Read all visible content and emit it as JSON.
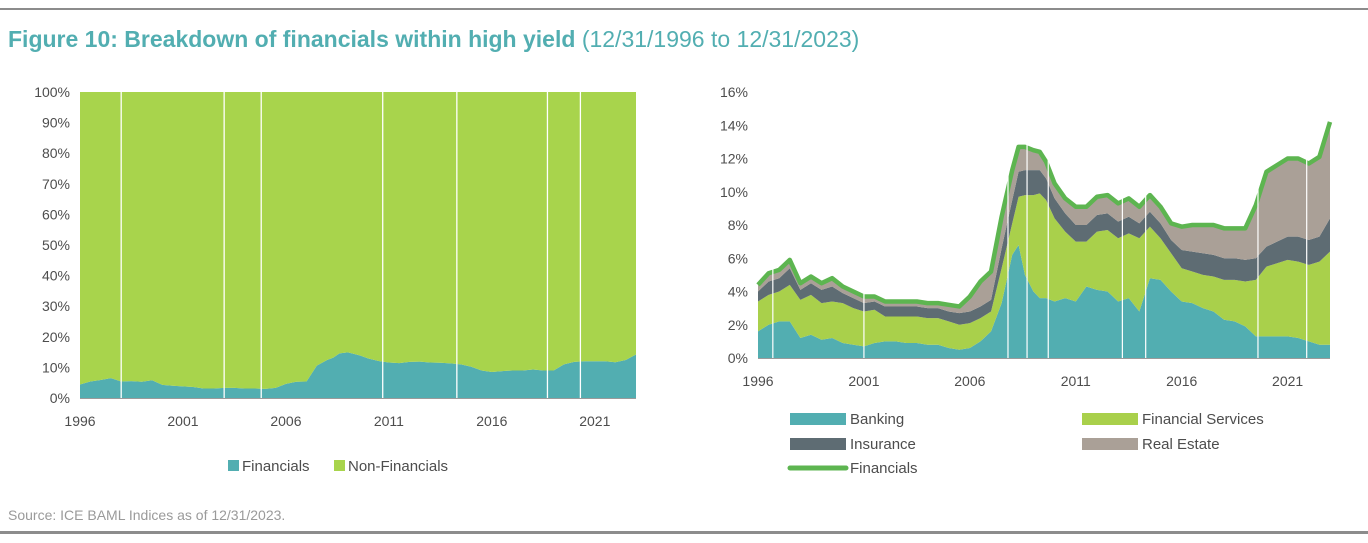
{
  "title": {
    "main": "Figure 10: Breakdown of financials within high yield",
    "range": "(12/31/1996 to 12/31/2023)"
  },
  "colors": {
    "title": "#52aeb1",
    "banking": "#52aeb1",
    "financial_services": "#a9d04b",
    "insurance": "#5e6c73",
    "real_estate": "#aaa097",
    "financials_line": "#5db550",
    "financials_area": "#52aeb1",
    "non_financials_area": "#a8d44c"
  },
  "source": "Source: ICE BAML Indices as of 12/31/2023.",
  "chart_data": [
    {
      "type": "area",
      "stacked": true,
      "normalized": true,
      "xlim": [
        1996,
        2023
      ],
      "ylim": [
        0,
        100
      ],
      "y_tick_labels": [
        "0%",
        "10%",
        "20%",
        "30%",
        "40%",
        "50%",
        "60%",
        "70%",
        "80%",
        "90%",
        "100%"
      ],
      "x_tick_labels": [
        "1996",
        "2001",
        "2006",
        "2011",
        "2016",
        "2021"
      ],
      "legend_position": "bottom",
      "x": [
        1996.0,
        1996.5,
        1997.0,
        1997.5,
        1998.0,
        1998.5,
        1999.0,
        1999.5,
        2000.0,
        2000.5,
        2001.0,
        2001.5,
        2002.0,
        2002.5,
        2003.0,
        2003.5,
        2004.0,
        2004.5,
        2005.0,
        2005.5,
        2006.0,
        2006.5,
        2007.0,
        2007.5,
        2008.0,
        2008.3,
        2008.6,
        2009.0,
        2009.3,
        2009.6,
        2010.0,
        2010.5,
        2011.0,
        2011.5,
        2012.0,
        2012.5,
        2013.0,
        2013.5,
        2014.0,
        2014.5,
        2015.0,
        2015.5,
        2016.0,
        2016.5,
        2017.0,
        2017.5,
        2018.0,
        2018.5,
        2019.0,
        2019.5,
        2020.0,
        2020.5,
        2021.0,
        2021.5,
        2022.0,
        2022.5,
        2023.0
      ],
      "series": [
        {
          "name": "Financials",
          "values": [
            4.4,
            5.4,
            5.9,
            6.5,
            5.4,
            5.5,
            5.3,
            5.8,
            4.3,
            4.0,
            3.8,
            3.6,
            3.1,
            3.1,
            3.3,
            3.3,
            3.1,
            3.1,
            3.0,
            3.3,
            4.6,
            5.3,
            5.4,
            10.6,
            12.4,
            13.2,
            14.6,
            14.9,
            14.4,
            13.9,
            12.9,
            12.1,
            11.6,
            11.4,
            11.8,
            11.9,
            11.6,
            11.5,
            11.3,
            11.0,
            10.2,
            9.0,
            8.5,
            8.8,
            9.0,
            9.0,
            9.3,
            9.0,
            9.0,
            11.0,
            11.8,
            12.0,
            12.0,
            12.0,
            11.7,
            12.4,
            14.2
          ]
        },
        {
          "name": "Non-Financials",
          "values": [
            95.6,
            94.6,
            94.1,
            93.5,
            94.6,
            94.5,
            94.7,
            94.2,
            95.7,
            96.0,
            96.2,
            96.4,
            96.9,
            96.9,
            96.7,
            96.7,
            96.9,
            96.9,
            97.0,
            96.7,
            95.4,
            94.7,
            94.6,
            89.4,
            87.6,
            86.8,
            85.4,
            85.1,
            85.6,
            86.1,
            87.1,
            87.9,
            88.4,
            88.6,
            88.2,
            88.1,
            88.4,
            88.5,
            88.7,
            89.0,
            89.8,
            91.0,
            91.5,
            91.2,
            91.0,
            91.0,
            90.7,
            91.0,
            91.0,
            89.0,
            88.2,
            88.0,
            88.0,
            88.0,
            88.3,
            87.6,
            85.8
          ]
        }
      ]
    },
    {
      "type": "area",
      "stacked": true,
      "xlim": [
        1996,
        2023
      ],
      "ylim": [
        0,
        16
      ],
      "y_tick_labels": [
        "0%",
        "2%",
        "4%",
        "6%",
        "8%",
        "10%",
        "12%",
        "14%",
        "16%"
      ],
      "x_tick_labels": [
        "1996",
        "2001",
        "2006",
        "2011",
        "2016",
        "2021"
      ],
      "legend_position": "bottom",
      "x": [
        1996.0,
        1996.5,
        1997.0,
        1997.5,
        1998.0,
        1998.5,
        1999.0,
        1999.5,
        2000.0,
        2000.5,
        2001.0,
        2001.5,
        2002.0,
        2002.5,
        2003.0,
        2003.5,
        2004.0,
        2004.5,
        2005.0,
        2005.5,
        2006.0,
        2006.5,
        2007.0,
        2007.5,
        2008.0,
        2008.3,
        2008.6,
        2009.0,
        2009.3,
        2009.6,
        2010.0,
        2010.5,
        2011.0,
        2011.5,
        2012.0,
        2012.5,
        2013.0,
        2013.5,
        2014.0,
        2014.5,
        2015.0,
        2015.5,
        2016.0,
        2016.5,
        2017.0,
        2017.5,
        2018.0,
        2018.5,
        2019.0,
        2019.5,
        2020.0,
        2020.5,
        2021.0,
        2021.5,
        2022.0,
        2022.5,
        2023.0
      ],
      "series": [
        {
          "name": "Banking",
          "values": [
            1.6,
            2.0,
            2.2,
            2.2,
            1.2,
            1.4,
            1.1,
            1.2,
            0.9,
            0.8,
            0.7,
            0.9,
            1.0,
            1.0,
            0.9,
            0.9,
            0.8,
            0.8,
            0.6,
            0.5,
            0.6,
            1.0,
            1.6,
            3.3,
            6.2,
            6.8,
            5.0,
            4.0,
            3.6,
            3.6,
            3.4,
            3.6,
            3.4,
            4.3,
            4.1,
            4.0,
            3.4,
            3.6,
            2.8,
            4.8,
            4.7,
            4.0,
            3.4,
            3.3,
            3.0,
            2.8,
            2.3,
            2.2,
            1.9,
            1.3,
            1.3,
            1.3,
            1.3,
            1.2,
            1.0,
            0.8,
            0.8
          ]
        },
        {
          "name": "Financial Services",
          "values": [
            1.8,
            1.8,
            1.8,
            2.2,
            2.3,
            2.4,
            2.2,
            2.2,
            2.4,
            2.2,
            2.1,
            2.0,
            1.5,
            1.5,
            1.6,
            1.6,
            1.6,
            1.6,
            1.6,
            1.5,
            1.5,
            1.4,
            1.2,
            2.1,
            1.9,
            2.9,
            4.8,
            5.8,
            6.3,
            5.9,
            5.0,
            4.0,
            3.6,
            2.7,
            3.5,
            3.7,
            3.8,
            3.9,
            4.4,
            3.1,
            2.5,
            2.3,
            2.0,
            1.9,
            2.0,
            2.1,
            2.4,
            2.5,
            2.7,
            3.4,
            4.2,
            4.4,
            4.6,
            4.6,
            4.6,
            5.0,
            5.6
          ]
        },
        {
          "name": "Insurance",
          "values": [
            0.6,
            0.8,
            0.8,
            1.0,
            0.6,
            0.7,
            0.8,
            0.9,
            0.6,
            0.6,
            0.5,
            0.5,
            0.6,
            0.6,
            0.6,
            0.6,
            0.6,
            0.6,
            0.6,
            0.7,
            0.7,
            0.7,
            0.7,
            1.2,
            1.4,
            1.5,
            1.5,
            1.5,
            1.4,
            1.3,
            1.2,
            1.1,
            1.0,
            1.0,
            1.0,
            1.0,
            1.0,
            1.0,
            0.9,
            0.9,
            0.9,
            0.8,
            1.1,
            1.2,
            1.3,
            1.3,
            1.3,
            1.3,
            1.3,
            1.3,
            1.2,
            1.3,
            1.4,
            1.5,
            1.5,
            1.5,
            2.0
          ]
        },
        {
          "name": "Real Estate",
          "values": [
            0.4,
            0.5,
            0.5,
            0.5,
            0.4,
            0.4,
            0.4,
            0.5,
            0.4,
            0.4,
            0.4,
            0.3,
            0.3,
            0.3,
            0.3,
            0.3,
            0.3,
            0.3,
            0.4,
            0.4,
            0.9,
            1.5,
            1.7,
            1.9,
            1.8,
            1.5,
            1.4,
            1.2,
            1.1,
            1.0,
            0.9,
            0.9,
            1.1,
            1.1,
            1.1,
            1.1,
            1.1,
            1.1,
            1.0,
            1.0,
            1.0,
            1.0,
            1.4,
            1.6,
            1.7,
            1.8,
            1.8,
            1.8,
            1.9,
            3.2,
            4.5,
            4.6,
            4.7,
            4.7,
            4.6,
            4.8,
            5.8
          ]
        },
        {
          "name": "Financials",
          "type": "line",
          "values": [
            4.4,
            5.1,
            5.3,
            5.9,
            4.5,
            4.9,
            4.5,
            4.8,
            4.3,
            4.0,
            3.7,
            3.7,
            3.4,
            3.4,
            3.4,
            3.4,
            3.3,
            3.3,
            3.2,
            3.1,
            3.7,
            4.6,
            5.2,
            8.5,
            11.3,
            12.7,
            12.7,
            12.5,
            12.4,
            11.8,
            10.5,
            9.6,
            9.1,
            9.1,
            9.7,
            9.8,
            9.3,
            9.6,
            9.1,
            9.8,
            9.1,
            8.1,
            7.9,
            8.0,
            8.0,
            8.0,
            7.8,
            7.8,
            7.8,
            9.2,
            11.2,
            11.6,
            12.0,
            12.0,
            11.7,
            12.1,
            14.2
          ]
        }
      ]
    }
  ]
}
